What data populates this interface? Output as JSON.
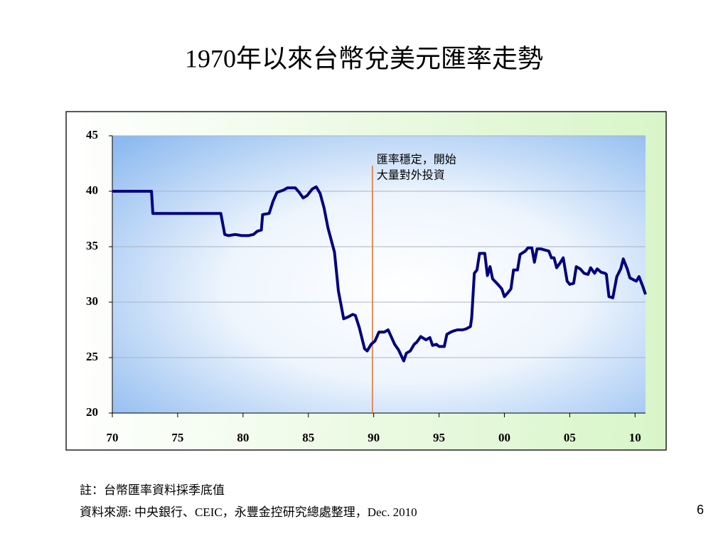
{
  "chart_data": {
    "type": "line",
    "title": "1970年以來台幣兌美元匯率走勢",
    "x": [
      1970,
      1973.0,
      1973.1,
      1978.3,
      1978.6,
      1978.9,
      1979.4,
      1979.9,
      1980.4,
      1980.8,
      1981.1,
      1981.4,
      1981.5,
      1982.0,
      1982.3,
      1982.6,
      1983.1,
      1983.4,
      1984.0,
      1984.3,
      1984.6,
      1984.9,
      1985.3,
      1985.6,
      1985.9,
      1986.2,
      1986.5,
      1987.0,
      1987.3,
      1987.7,
      1988.1,
      1988.4,
      1988.6,
      1988.9,
      1989.3,
      1989.5,
      1989.8,
      1990.1,
      1990.4,
      1990.8,
      1991.1,
      1991.3,
      1991.6,
      1991.9,
      1992.3,
      1992.5,
      1992.8,
      1993.1,
      1993.3,
      1993.6,
      1994.0,
      1994.3,
      1994.5,
      1994.8,
      1995.0,
      1995.4,
      1995.6,
      1995.9,
      1996.1,
      1996.4,
      1996.8,
      1997.1,
      1997.4,
      1997.5,
      1997.7,
      1997.9,
      1998.1,
      1998.5,
      1998.7,
      1998.9,
      1999.1,
      1999.5,
      1999.8,
      2000.0,
      2000.3,
      2000.5,
      2000.7,
      2001.0,
      2001.2,
      2001.6,
      2001.8,
      2002.1,
      2002.3,
      2002.5,
      2002.8,
      2003.1,
      2003.4,
      2003.6,
      2003.8,
      2004.0,
      2004.3,
      2004.5,
      2004.8,
      2005.0,
      2005.3,
      2005.5,
      2005.8,
      2006.1,
      2006.4,
      2006.6,
      2006.9,
      2007.1,
      2007.4,
      2007.7,
      2007.8,
      2008.0,
      2008.3,
      2008.6,
      2008.9,
      2009.1,
      2009.4,
      2009.6,
      2009.9,
      2010.1,
      2010.3,
      2010.6,
      2010.8
    ],
    "values": [
      40.0,
      40.0,
      38.0,
      38.0,
      36.1,
      36.0,
      36.1,
      36.0,
      36.0,
      36.1,
      36.4,
      36.5,
      37.9,
      38.0,
      39.1,
      39.9,
      40.1,
      40.3,
      40.3,
      39.9,
      39.4,
      39.6,
      40.2,
      40.4,
      39.8,
      38.5,
      36.7,
      34.5,
      31.0,
      28.5,
      28.7,
      28.9,
      28.8,
      27.7,
      25.8,
      25.6,
      26.2,
      26.5,
      27.3,
      27.3,
      27.5,
      27.0,
      26.2,
      25.7,
      24.7,
      25.4,
      25.6,
      26.2,
      26.4,
      26.9,
      26.6,
      26.8,
      26.1,
      26.2,
      26.0,
      26.0,
      27.1,
      27.3,
      27.4,
      27.5,
      27.5,
      27.6,
      27.8,
      28.6,
      32.6,
      32.9,
      34.4,
      34.4,
      32.4,
      33.2,
      32.1,
      31.6,
      31.2,
      30.5,
      30.9,
      31.2,
      32.9,
      32.9,
      34.3,
      34.6,
      34.9,
      34.9,
      33.6,
      34.8,
      34.8,
      34.7,
      34.6,
      34.0,
      34.0,
      33.1,
      33.6,
      34.0,
      31.9,
      31.6,
      31.7,
      33.2,
      33.0,
      32.6,
      32.5,
      33.1,
      32.6,
      33.0,
      32.7,
      32.6,
      32.5,
      30.5,
      30.4,
      32.3,
      33.0,
      33.9,
      33.0,
      32.2,
      32.0,
      31.9,
      32.3,
      31.4,
      30.7
    ],
    "color": "#000080",
    "xlim": [
      1970,
      2010.8
    ],
    "ylim": [
      20,
      45
    ],
    "xticks": [
      {
        "value": 1970,
        "label": "70"
      },
      {
        "value": 1975,
        "label": "75"
      },
      {
        "value": 1980,
        "label": "80"
      },
      {
        "value": 1985,
        "label": "85"
      },
      {
        "value": 1990,
        "label": "90"
      },
      {
        "value": 1995,
        "label": "95"
      },
      {
        "value": 2000,
        "label": "00"
      },
      {
        "value": 2005,
        "label": "05"
      },
      {
        "value": 2010,
        "label": "10"
      }
    ],
    "yticks": [
      20,
      25,
      30,
      35,
      40,
      45
    ],
    "grid": true,
    "annotation": {
      "x": 1989.9,
      "lines": [
        "匯率穩定，開始",
        "大量對外投資"
      ],
      "color": "#e07030"
    }
  },
  "footnotes": [
    "註：台幣匯率資料採季底值",
    "資料來源: 中央銀行、CEIC，永豐金控研究總處整理，Dec. 2010"
  ],
  "page_number": 6
}
